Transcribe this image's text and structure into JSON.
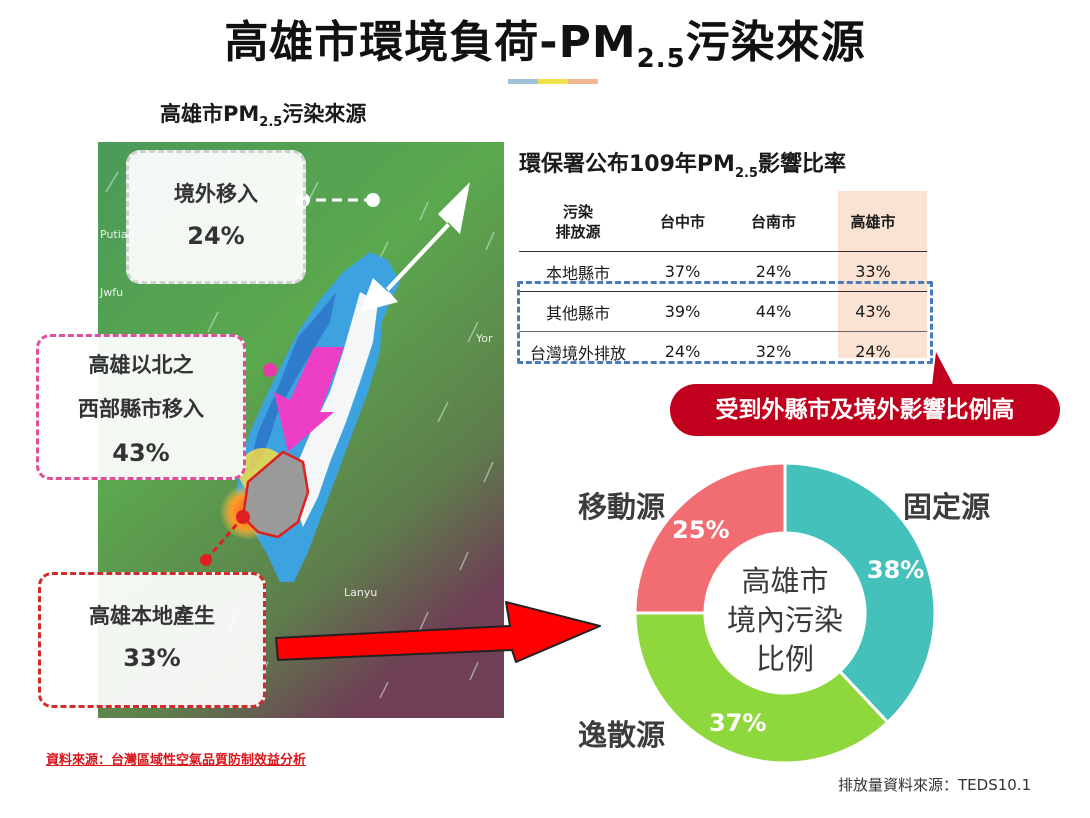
{
  "title": {
    "main": "高雄市環境負荷-PM",
    "sub": "2.5",
    "suffix": "污染來源"
  },
  "underline_colors": [
    "#9fc3d8",
    "#f0e14a",
    "#f2b896"
  ],
  "map": {
    "heading": {
      "main": "高雄市PM",
      "sub": "2.5",
      "suffix": "污染來源"
    },
    "place_labels": [
      "Putian",
      "Jwfu",
      "Yor",
      "Lanyu"
    ],
    "callouts": {
      "import": {
        "line1": "境外移入",
        "pct": "24%"
      },
      "west": {
        "line1": "高雄以北之",
        "line2": "西部縣市移入",
        "pct": "43%"
      },
      "local": {
        "line1": "高雄本地產生",
        "pct": "33%"
      }
    }
  },
  "table": {
    "title": {
      "main": "環保署公布109年PM",
      "sub": "2.5",
      "suffix": "影響比率"
    },
    "headers": [
      "污染\n排放源",
      "台中市",
      "台南市",
      "高雄市"
    ],
    "rows": [
      [
        "本地縣市",
        "37%",
        "24%",
        "33%"
      ],
      [
        "其他縣市",
        "39%",
        "44%",
        "43%"
      ],
      [
        "台灣境外排放",
        "24%",
        "32%",
        "24%"
      ]
    ],
    "highlight_color": "#fbe3d3"
  },
  "badge": "受到外縣市及境外影響比例高",
  "donut": {
    "center": [
      "高雄市",
      "境內污染",
      "比例"
    ],
    "slices": [
      {
        "label": "固定源",
        "pct": "38%",
        "value": 38,
        "color": "#45c1bc"
      },
      {
        "label": "逸散源",
        "pct": "37%",
        "value": 37,
        "color": "#8ed83e"
      },
      {
        "label": "移動源",
        "pct": "25%",
        "value": 25,
        "color": "#f26d71"
      }
    ]
  },
  "sources": {
    "left_prefix": "資料來源",
    "left_text": "：台灣區域性空氣品質防制效益分析",
    "right": "排放量資料來源：TEDS10.1"
  }
}
